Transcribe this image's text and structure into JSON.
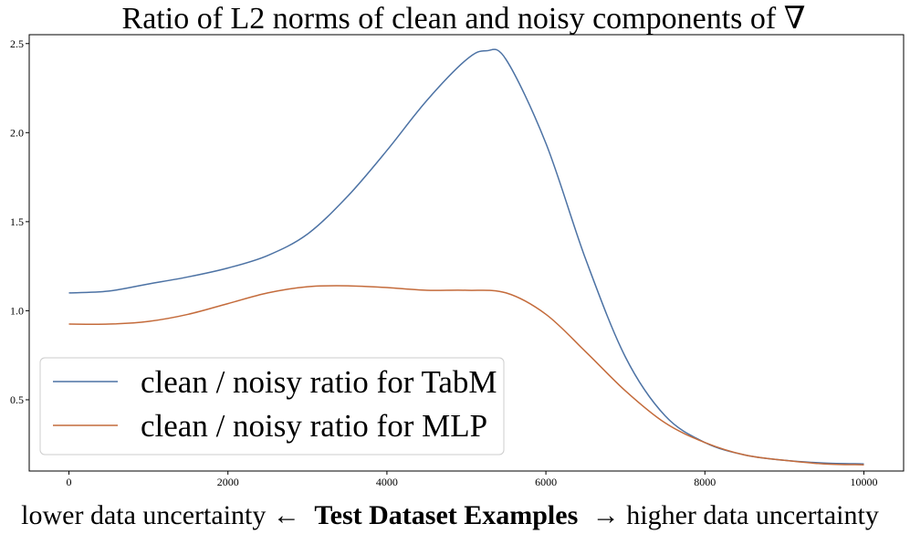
{
  "chart_data": {
    "type": "line",
    "title": "Ratio of L2 norms of clean and noisy components of ∇",
    "xlabel": {
      "left": "lower data uncertainty ←",
      "bold": "Test Dataset Examples",
      "right": "→ higher data uncertainty"
    },
    "ylabel": "",
    "xlim": [
      -500,
      10500
    ],
    "ylim": [
      0.1,
      2.55
    ],
    "x_ticks": [
      0,
      2000,
      4000,
      6000,
      8000,
      10000
    ],
    "y_ticks": [
      0.5,
      1.0,
      1.5,
      2.0,
      2.5
    ],
    "x_tick_labels": [
      "0",
      "2000",
      "4000",
      "6000",
      "8000",
      "10000"
    ],
    "y_tick_labels": [
      "0.5",
      "1.0",
      "1.5",
      "2.0",
      "2.5"
    ],
    "grid": false,
    "legend_position": "lower-left",
    "series": [
      {
        "name": "clean / noisy ratio for TabM",
        "color": "#4c72a4",
        "x": [
          0,
          500,
          1000,
          1500,
          2000,
          2500,
          3000,
          3500,
          4000,
          4500,
          5000,
          5250,
          5500,
          6000,
          6500,
          7000,
          7500,
          8000,
          8500,
          9000,
          9500,
          10000
        ],
        "y": [
          1.1,
          1.11,
          1.15,
          1.19,
          1.24,
          1.31,
          1.43,
          1.64,
          1.9,
          2.18,
          2.41,
          2.46,
          2.41,
          1.94,
          1.29,
          0.74,
          0.41,
          0.26,
          0.19,
          0.16,
          0.145,
          0.14
        ]
      },
      {
        "name": "clean / noisy ratio for MLP",
        "color": "#c46b3b",
        "x": [
          0,
          500,
          1000,
          1500,
          2000,
          2500,
          3000,
          3500,
          4000,
          4500,
          5000,
          5500,
          6000,
          6500,
          7000,
          7500,
          8000,
          8500,
          9000,
          9500,
          10000
        ],
        "y": [
          0.925,
          0.925,
          0.94,
          0.98,
          1.04,
          1.1,
          1.135,
          1.14,
          1.13,
          1.115,
          1.115,
          1.1,
          0.98,
          0.77,
          0.55,
          0.37,
          0.26,
          0.19,
          0.16,
          0.14,
          0.135
        ]
      }
    ]
  }
}
